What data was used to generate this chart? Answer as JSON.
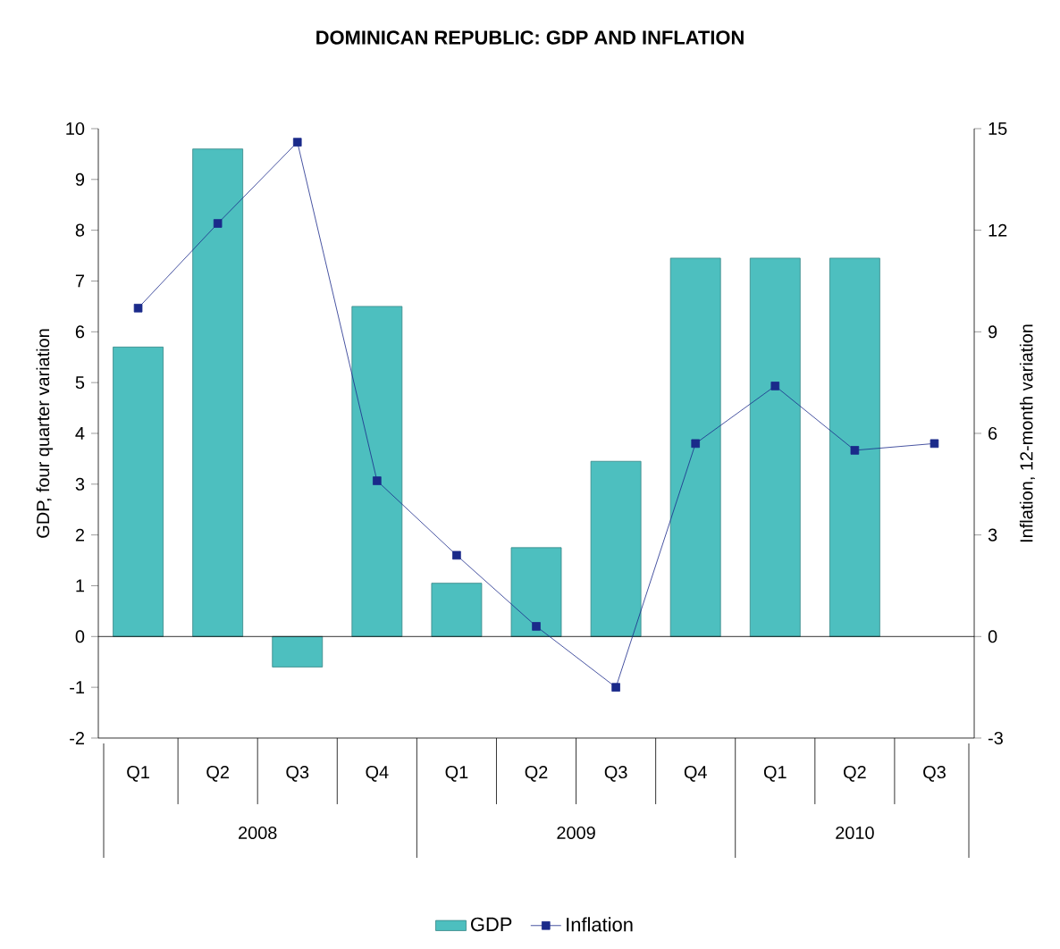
{
  "chart_data": {
    "type": "bar",
    "title": "DOMINICAN REPUBLIC: GDP AND INFLATION",
    "ylabel": "GDP, four quarter variation",
    "y2label": "Inflation, 12-month variation",
    "categories": [
      "Q1",
      "Q2",
      "Q3",
      "Q4",
      "Q1",
      "Q2",
      "Q3",
      "Q4",
      "Q1",
      "Q2",
      "Q3"
    ],
    "annotations": [
      "2008",
      "2009",
      "2010"
    ],
    "series": [
      {
        "name": "GDP",
        "color": "#4dbfbf",
        "values": [
          5.7,
          9.6,
          -0.6,
          6.5,
          1.05,
          1.75,
          3.45,
          7.45,
          7.45,
          7.45,
          null
        ]
      },
      {
        "name": "Inflation",
        "type": "line",
        "axis": "y2",
        "color": "#1a2a8a",
        "values": [
          9.7,
          12.2,
          14.6,
          4.6,
          2.4,
          0.3,
          -1.5,
          5.7,
          7.4,
          5.5,
          5.7
        ]
      }
    ],
    "marker": "square",
    "line_style": "solid",
    "legend": "bottom",
    "ylim": [
      -2,
      10
    ],
    "yticks": [
      -2,
      -1,
      0,
      1,
      2,
      3,
      4,
      5,
      6,
      7,
      8,
      9,
      10
    ],
    "y2lim": [
      -3,
      15
    ],
    "y2ticks": [
      -3,
      0,
      3,
      6,
      9,
      12,
      15
    ]
  }
}
